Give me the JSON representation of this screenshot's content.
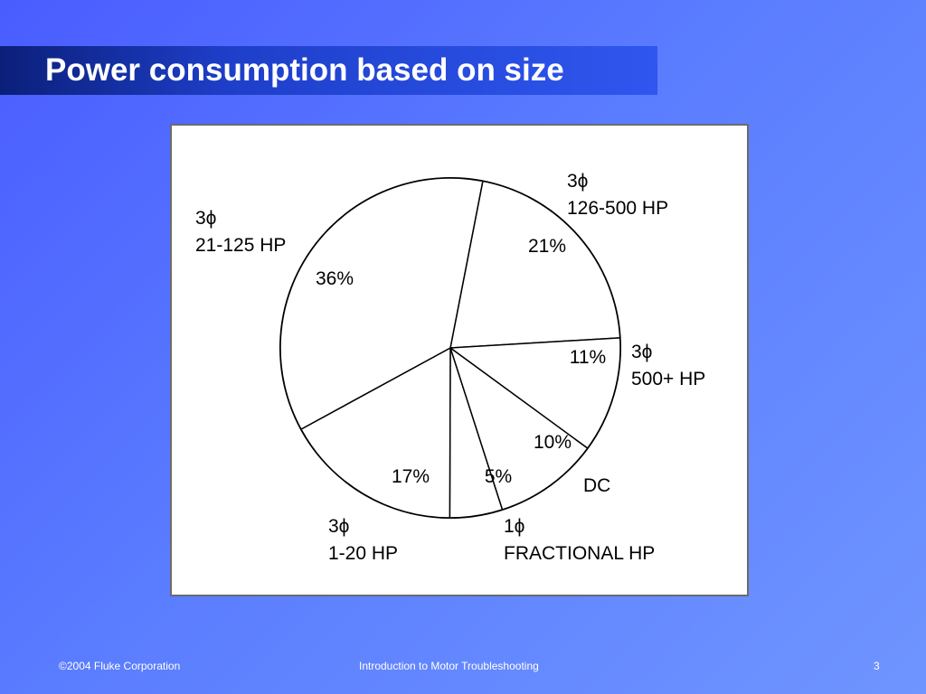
{
  "slide": {
    "title": "Power consumption based on size"
  },
  "footer": {
    "copyright": "©2004 Fluke Corporation",
    "course": "Introduction to Motor Troubleshooting",
    "page_number": "3"
  },
  "chart_data": {
    "type": "pie",
    "title": "",
    "slices": [
      {
        "name": "3ϕ 126-500 HP",
        "label_lines": [
          "3ϕ",
          "126-500 HP"
        ],
        "value": 21,
        "value_label": "21%"
      },
      {
        "name": "3ϕ 500+ HP",
        "label_lines": [
          "3ϕ",
          "500+ HP"
        ],
        "value": 11,
        "value_label": "11%"
      },
      {
        "name": "DC",
        "label_lines": [
          "DC"
        ],
        "value": 10,
        "value_label": "10%"
      },
      {
        "name": "1ϕ FRACTIONAL HP",
        "label_lines": [
          "1ϕ",
          "FRACTIONAL HP"
        ],
        "value": 5,
        "value_label": "5%"
      },
      {
        "name": "3ϕ 1-20 HP",
        "label_lines": [
          "3ϕ",
          "1-20 HP"
        ],
        "value": 17,
        "value_label": "17%"
      },
      {
        "name": "3ϕ 21-125 HP",
        "label_lines": [
          "3ϕ",
          "21-125 HP"
        ],
        "value": 36,
        "value_label": "36%"
      }
    ],
    "fill_color": "#ffffff",
    "stroke_color": "#000000"
  }
}
